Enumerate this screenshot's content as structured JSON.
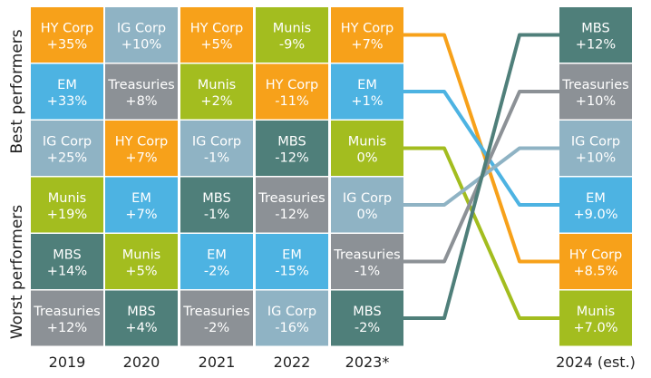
{
  "chart_data": {
    "type": "table",
    "y_axis": {
      "top_label": "Best performers",
      "bottom_label": "Worst performers"
    },
    "colors": {
      "HY Corp": "#f7a11a",
      "IG Corp": "#8fb3c4",
      "EM": "#4db3e2",
      "Munis": "#a3bd1f",
      "MBS": "#4f7f7a",
      "Treasuries": "#8c9196"
    },
    "years": [
      {
        "label": "2019",
        "cells": [
          {
            "name": "HY Corp",
            "value": "+35%"
          },
          {
            "name": "EM",
            "value": "+33%"
          },
          {
            "name": "IG Corp",
            "value": "+25%"
          },
          {
            "name": "Munis",
            "value": "+19%"
          },
          {
            "name": "MBS",
            "value": "+14%"
          },
          {
            "name": "Treasuries",
            "value": "+12%"
          }
        ]
      },
      {
        "label": "2020",
        "cells": [
          {
            "name": "IG Corp",
            "value": "+10%"
          },
          {
            "name": "Treasuries",
            "value": "+8%"
          },
          {
            "name": "HY Corp",
            "value": "+7%"
          },
          {
            "name": "EM",
            "value": "+7%"
          },
          {
            "name": "Munis",
            "value": "+5%"
          },
          {
            "name": "MBS",
            "value": "+4%"
          }
        ]
      },
      {
        "label": "2021",
        "cells": [
          {
            "name": "HY Corp",
            "value": "+5%"
          },
          {
            "name": "Munis",
            "value": "+2%"
          },
          {
            "name": "IG Corp",
            "value": "-1%"
          },
          {
            "name": "MBS",
            "value": "-1%"
          },
          {
            "name": "EM",
            "value": "-2%"
          },
          {
            "name": "Treasuries",
            "value": "-2%"
          }
        ]
      },
      {
        "label": "2022",
        "cells": [
          {
            "name": "Munis",
            "value": "-9%"
          },
          {
            "name": "HY Corp",
            "value": "-11%"
          },
          {
            "name": "MBS",
            "value": "-12%"
          },
          {
            "name": "Treasuries",
            "value": "-12%"
          },
          {
            "name": "EM",
            "value": "-15%"
          },
          {
            "name": "IG Corp",
            "value": "-16%"
          }
        ]
      },
      {
        "label": "2023*",
        "cells": [
          {
            "name": "HY Corp",
            "value": "+7%"
          },
          {
            "name": "EM",
            "value": "+1%"
          },
          {
            "name": "Munis",
            "value": "0%"
          },
          {
            "name": "IG Corp",
            "value": "0%"
          },
          {
            "name": "Treasuries",
            "value": "-1%"
          },
          {
            "name": "MBS",
            "value": "-2%"
          }
        ]
      },
      {
        "label": "2024 (est.)",
        "cells": [
          {
            "name": "MBS",
            "value": "+12%"
          },
          {
            "name": "Treasuries",
            "value": "+10%"
          },
          {
            "name": "IG Corp",
            "value": "+10%"
          },
          {
            "name": "EM",
            "value": "+9.0%"
          },
          {
            "name": "HY Corp",
            "value": "+8.5%"
          },
          {
            "name": "Munis",
            "value": "+7.0%"
          }
        ]
      }
    ]
  }
}
